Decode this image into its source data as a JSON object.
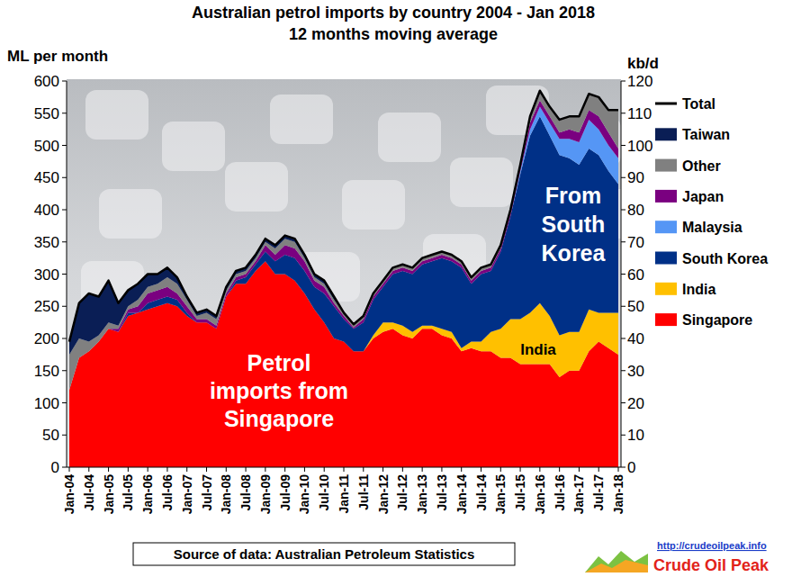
{
  "chart_data": {
    "type": "area",
    "stacked": true,
    "title": "Australian petrol imports by country 2004 - Jan 2018",
    "subtitle": "12 months moving average",
    "y_label": "ML per month",
    "y2_label": "kb/d",
    "source": "Source of data: Australian Petroleum Statistics",
    "credit_url": "http://crudeoilpeak.info",
    "credit": "Crude Oil Peak",
    "legend": "right",
    "grid": false,
    "ylim": [
      0,
      600
    ],
    "yticks": [
      0,
      50,
      100,
      150,
      200,
      250,
      300,
      350,
      400,
      450,
      500,
      550,
      600
    ],
    "y2lim": [
      0,
      120
    ],
    "y2ticks": [
      0,
      10,
      20,
      30,
      40,
      50,
      60,
      70,
      80,
      90,
      100,
      110,
      120
    ],
    "categories": [
      "Jan-04",
      null,
      "Jul-04",
      null,
      "Jan-05",
      null,
      "Jul-05",
      null,
      "Jan-06",
      null,
      "Jul-06",
      null,
      "Jan-07",
      null,
      "Jul-07",
      null,
      "Jan-08",
      null,
      "Jul-08",
      null,
      "Jan-09",
      null,
      "Jul-09",
      null,
      "Jan-10",
      null,
      "Jul-10",
      null,
      "Jan-11",
      null,
      "Jul-11",
      null,
      "Jan-12",
      null,
      "Jul-12",
      null,
      "Jan-13",
      null,
      "Jul-13",
      null,
      "Jan-14",
      null,
      "Jul-14",
      null,
      "Jan-15",
      null,
      "Jul-15",
      null,
      "Jan-16",
      null,
      "Jul-16",
      null,
      "Jan-17",
      null,
      "Jul-17",
      null,
      "Jan-18"
    ],
    "series": [
      {
        "name": "Singapore",
        "color": "#ff0000",
        "values": [
          120,
          170,
          180,
          195,
          215,
          210,
          235,
          240,
          245,
          250,
          255,
          250,
          235,
          225,
          225,
          215,
          265,
          285,
          285,
          305,
          320,
          300,
          300,
          290,
          270,
          245,
          225,
          200,
          195,
          180,
          180,
          200,
          210,
          215,
          205,
          200,
          215,
          215,
          205,
          200,
          180,
          185,
          180,
          180,
          170,
          170,
          160,
          160,
          160,
          160,
          140,
          150,
          150,
          180,
          195,
          185,
          175
        ]
      },
      {
        "name": "India",
        "color": "#ffc000",
        "values": [
          0,
          0,
          0,
          0,
          0,
          0,
          0,
          0,
          0,
          0,
          0,
          0,
          0,
          0,
          0,
          0,
          0,
          0,
          0,
          0,
          0,
          0,
          0,
          0,
          0,
          0,
          0,
          0,
          0,
          0,
          0,
          5,
          15,
          10,
          15,
          10,
          5,
          5,
          10,
          10,
          5,
          10,
          15,
          30,
          45,
          60,
          70,
          80,
          95,
          75,
          65,
          60,
          60,
          65,
          45,
          55,
          65
        ]
      },
      {
        "name": "South Korea",
        "color": "#003087",
        "values": [
          0,
          0,
          0,
          0,
          0,
          0,
          5,
          0,
          10,
          10,
          10,
          10,
          5,
          0,
          0,
          0,
          0,
          5,
          10,
          10,
          15,
          20,
          30,
          35,
          35,
          35,
          45,
          50,
          35,
          35,
          45,
          55,
          55,
          75,
          85,
          90,
          95,
          100,
          110,
          110,
          125,
          90,
          105,
          95,
          120,
          160,
          225,
          275,
          290,
          280,
          280,
          270,
          260,
          250,
          245,
          220,
          200
        ]
      },
      {
        "name": "Malaysia",
        "color": "#5596f5",
        "values": [
          0,
          0,
          0,
          0,
          0,
          0,
          0,
          0,
          0,
          0,
          0,
          0,
          0,
          0,
          0,
          0,
          0,
          0,
          0,
          0,
          0,
          0,
          0,
          0,
          0,
          0,
          0,
          0,
          0,
          0,
          0,
          0,
          0,
          0,
          0,
          0,
          0,
          0,
          0,
          0,
          0,
          0,
          0,
          0,
          0,
          0,
          5,
          10,
          15,
          20,
          25,
          30,
          35,
          45,
          40,
          40,
          40
        ]
      },
      {
        "name": "Japan",
        "color": "#7a0080",
        "values": [
          0,
          0,
          0,
          0,
          0,
          5,
          5,
          10,
          15,
          15,
          15,
          10,
          10,
          5,
          5,
          5,
          5,
          5,
          5,
          5,
          10,
          10,
          15,
          15,
          15,
          10,
          10,
          5,
          5,
          2,
          5,
          5,
          5,
          5,
          5,
          5,
          5,
          5,
          5,
          5,
          5,
          5,
          5,
          5,
          5,
          5,
          5,
          10,
          10,
          10,
          10,
          15,
          15,
          15,
          20,
          20,
          15
        ]
      },
      {
        "name": "Other",
        "color": "#808080",
        "values": [
          55,
          30,
          15,
          10,
          10,
          5,
          5,
          10,
          10,
          10,
          15,
          15,
          10,
          5,
          10,
          10,
          5,
          5,
          5,
          5,
          5,
          10,
          10,
          10,
          5,
          5,
          5,
          5,
          5,
          5,
          5,
          5,
          5,
          5,
          5,
          5,
          5,
          5,
          5,
          5,
          5,
          5,
          5,
          5,
          5,
          5,
          5,
          10,
          15,
          15,
          20,
          20,
          25,
          25,
          30,
          35,
          60
        ]
      },
      {
        "name": "Taiwan",
        "color": "#0a1e55",
        "values": [
          20,
          55,
          75,
          60,
          65,
          35,
          25,
          25,
          20,
          15,
          15,
          10,
          5,
          5,
          5,
          5,
          5,
          5,
          5,
          5,
          5,
          5,
          5,
          5,
          5,
          5,
          5,
          5,
          0,
          0,
          0,
          0,
          0,
          0,
          0,
          0,
          0,
          0,
          0,
          0,
          0,
          0,
          0,
          0,
          0,
          0,
          0,
          0,
          0,
          0,
          0,
          0,
          0,
          0,
          0,
          0,
          0
        ]
      },
      {
        "name": "Total",
        "type": "line",
        "color": "#000000",
        "values": [
          195,
          255,
          270,
          265,
          290,
          255,
          275,
          285,
          300,
          300,
          310,
          295,
          265,
          240,
          245,
          235,
          280,
          305,
          310,
          330,
          355,
          345,
          360,
          355,
          330,
          300,
          290,
          265,
          240,
          222,
          235,
          270,
          290,
          310,
          315,
          310,
          325,
          330,
          335,
          330,
          320,
          295,
          310,
          315,
          345,
          400,
          470,
          545,
          585,
          560,
          540,
          545,
          545,
          580,
          575,
          555,
          555
        ]
      }
    ],
    "annotations": [
      {
        "text": "Petrol\nimports from\nSingapore"
      },
      {
        "text": "From\nSouth\nKorea"
      },
      {
        "text": "India"
      }
    ]
  }
}
